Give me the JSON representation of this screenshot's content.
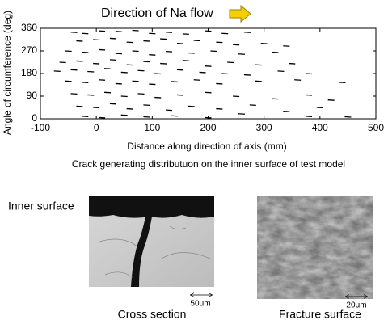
{
  "chart_data": {
    "type": "scatter",
    "title": "Direction of Na flow",
    "xlabel": "Distance along direction of axis (mm)",
    "ylabel": "Angle of circumference (deg)",
    "caption": "Crack generating distributuon on the inner surface of test model",
    "xlim": [
      -100,
      500
    ],
    "xticks": [
      -100,
      0,
      100,
      200,
      300,
      400,
      500
    ],
    "ylim": [
      0,
      360
    ],
    "yticks": [
      0,
      90,
      180,
      270,
      360
    ],
    "color": "#000000",
    "x": [
      -40,
      -20,
      10,
      40,
      70,
      100,
      130,
      160,
      200,
      230,
      270,
      -30,
      0,
      30,
      60,
      90,
      120,
      150,
      180,
      220,
      250,
      300,
      340,
      -50,
      -20,
      10,
      40,
      70,
      100,
      130,
      170,
      210,
      260,
      320,
      -60,
      -30,
      0,
      30,
      60,
      90,
      120,
      160,
      200,
      240,
      290,
      350,
      -70,
      -40,
      -10,
      20,
      50,
      80,
      110,
      150,
      190,
      230,
      270,
      330,
      380,
      -50,
      -20,
      10,
      40,
      70,
      100,
      140,
      180,
      220,
      290,
      360,
      440,
      -40,
      -10,
      20,
      50,
      80,
      110,
      150,
      200,
      250,
      320,
      380,
      420,
      -30,
      0,
      30,
      60,
      90,
      130,
      170,
      220,
      280,
      340,
      400,
      -20,
      10,
      50,
      90,
      140,
      200,
      260,
      380,
      450
    ],
    "values": [
      345,
      340,
      350,
      348,
      352,
      340,
      345,
      338,
      350,
      340,
      345,
      310,
      315,
      320,
      305,
      310,
      318,
      300,
      312,
      305,
      295,
      300,
      290,
      270,
      265,
      275,
      260,
      270,
      255,
      268,
      262,
      270,
      258,
      265,
      225,
      230,
      220,
      235,
      215,
      228,
      220,
      232,
      210,
      225,
      215,
      220,
      190,
      195,
      188,
      200,
      185,
      192,
      180,
      195,
      185,
      180,
      175,
      190,
      180,
      150,
      145,
      155,
      140,
      150,
      138,
      148,
      155,
      140,
      150,
      155,
      145,
      100,
      95,
      105,
      90,
      100,
      85,
      95,
      105,
      90,
      80,
      95,
      75,
      50,
      45,
      60,
      40,
      55,
      35,
      50,
      40,
      55,
      30,
      45,
      10,
      5,
      15,
      8,
      12,
      5,
      20,
      10,
      8
    ]
  },
  "figures": [
    {
      "annotation": "Inner surface",
      "scale": "50μm",
      "caption": "Cross section"
    },
    {
      "scale": "20μm",
      "caption": "Fracture surface"
    }
  ]
}
